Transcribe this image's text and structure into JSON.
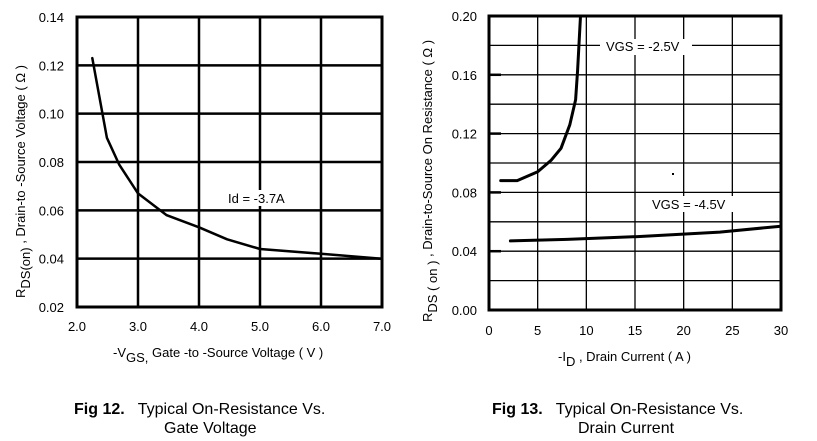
{
  "chart_data": [
    {
      "type": "line",
      "figure_label": "Fig 12.",
      "title_line1": "Typical On-Resistance Vs.",
      "title_line2": "Gate Voltage",
      "xlabel_prefix": "-V",
      "xlabel_sub": "GS,",
      "xlabel_rest": " Gate -to -Source Voltage  ( V )",
      "ylabel_prefix": "R",
      "ylabel_sub": "DS(on)",
      "ylabel_rest": " ,  Drain-to -Source Voltage ( Ω )",
      "xlim": [
        2.0,
        7.0
      ],
      "ylim": [
        0.02,
        0.14
      ],
      "xticks": [
        "2.0",
        "3.0",
        "4.0",
        "5.0",
        "6.0",
        "7.0"
      ],
      "yticks": [
        "0.02",
        "0.04",
        "0.06",
        "0.08",
        "0.10",
        "0.12",
        "0.14"
      ],
      "grid": true,
      "annotations": [
        {
          "text": "Id = -3.7A",
          "x": 4.5,
          "y": 0.058
        }
      ],
      "series": [
        {
          "name": "Id = -3.7A",
          "x": [
            2.25,
            2.49,
            2.69,
            3.0,
            3.47,
            4.0,
            4.46,
            5.0,
            6.0,
            7.0
          ],
          "y": [
            0.123,
            0.09,
            0.079,
            0.067,
            0.058,
            0.053,
            0.048,
            0.044,
            0.042,
            0.04
          ]
        }
      ]
    },
    {
      "type": "line",
      "figure_label": "Fig 13.",
      "title_line1": "Typical On-Resistance Vs.",
      "title_line2": "Drain Current",
      "xlabel_prefix": "-I",
      "xlabel_sub": "D",
      "xlabel_rest": " , Drain Current ( A )",
      "ylabel_prefix": "R",
      "ylabel_sub": "DS ( on )",
      "ylabel_rest": " , Drain-to-Source On Resistance ( Ω )",
      "xlim": [
        0,
        30
      ],
      "ylim": [
        0.0,
        0.2
      ],
      "xticks": [
        "0",
        "5",
        "10",
        "15",
        "20",
        "25",
        "30"
      ],
      "yticks": [
        "0.00",
        "0.04",
        "0.08",
        "0.12",
        "0.16",
        "0.20"
      ],
      "grid": true,
      "annotations": [
        {
          "text": "VGS = -2.5V",
          "x": 15,
          "y": 0.182
        },
        {
          "text": "VGS = -4.5V",
          "x": 20,
          "y": 0.069
        }
      ],
      "series": [
        {
          "name": "VGS = -2.5V",
          "x": [
            1.2,
            2.9,
            5.0,
            6.4,
            7.4,
            8.3,
            8.9,
            9.1,
            9.4
          ],
          "y": [
            0.088,
            0.088,
            0.094,
            0.102,
            0.11,
            0.126,
            0.143,
            0.163,
            0.2
          ]
        },
        {
          "name": "VGS = -4.5V",
          "x": [
            2.2,
            8.0,
            15.5,
            23.7,
            30.0
          ],
          "y": [
            0.047,
            0.048,
            0.05,
            0.053,
            0.057
          ]
        }
      ]
    }
  ]
}
